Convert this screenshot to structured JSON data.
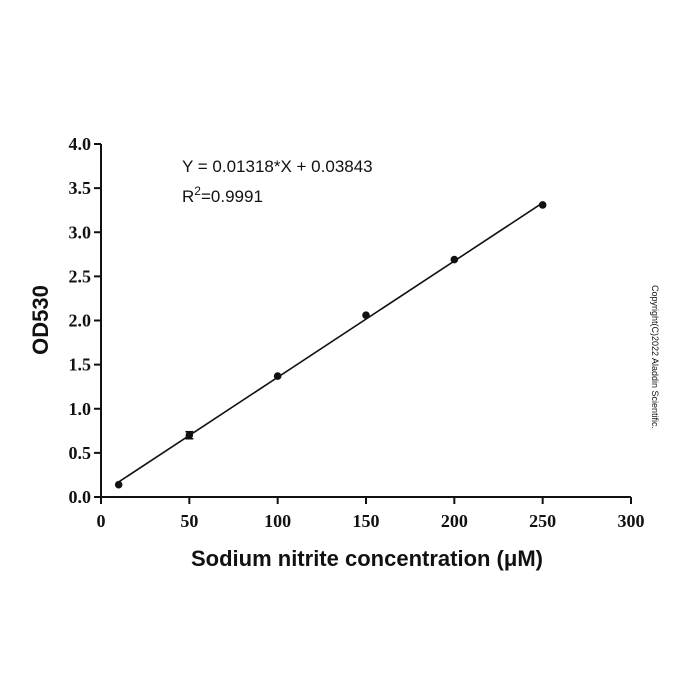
{
  "chart_data": {
    "type": "scatter",
    "title": "",
    "xlabel": "Sodium nitrite concentration (μM)",
    "ylabel": "OD530",
    "xlim": [
      0,
      300
    ],
    "ylim": [
      0,
      4.0
    ],
    "xticks": [
      "0",
      "50",
      "100",
      "150",
      "200",
      "250",
      "300"
    ],
    "yticks": [
      "0.0",
      "0.5",
      "1.0",
      "1.5",
      "2.0",
      "2.5",
      "3.0",
      "3.5",
      "4.0"
    ],
    "grid": false,
    "series": [
      {
        "x": [
          10,
          50,
          100,
          150,
          200,
          250
        ],
        "y": [
          0.14,
          0.7,
          1.37,
          2.06,
          2.69,
          3.31
        ],
        "y_error": [
          0.01,
          0.04,
          0.01,
          0.01,
          0.01,
          0.01
        ]
      }
    ],
    "fit_line": {
      "slope": 0.01318,
      "intercept": 0.03843,
      "x_range": [
        10,
        250
      ]
    },
    "annotations": {
      "equation": "Y = 0.01318*X + 0.03843",
      "r2_prefix": "R",
      "r2_sup": "2",
      "r2_value": "=0.9991"
    },
    "copyright": "Copyright(C)2022 Aladdin Scientific."
  }
}
